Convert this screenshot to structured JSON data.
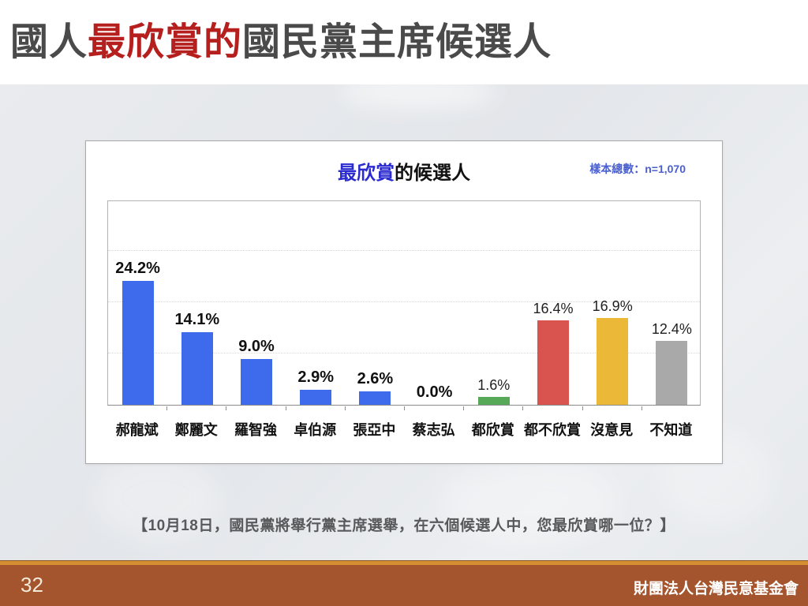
{
  "slide": {
    "title": {
      "prefix": "國人",
      "highlight": "最欣賞的",
      "suffix": "國民黨主席候選人"
    },
    "caption": "【10月18日，國民黨將舉行黨主席選舉，在六個候選人中，您最欣賞哪一位？】",
    "page_number": "32",
    "footer_org": "財團法人台灣民意基金會"
  },
  "chart": {
    "title_highlight": "最欣賞",
    "title_rest": "的候選人",
    "sample_note": "樣本總數：n=1,070"
  },
  "chart_data": {
    "type": "bar",
    "title": "最欣賞的候選人",
    "sample_note": "樣本總數：n=1,070",
    "categories": [
      "郝龍斌",
      "鄭麗文",
      "羅智強",
      "卓伯源",
      "張亞中",
      "蔡志弘",
      "都欣賞",
      "都不欣賞",
      "沒意見",
      "不知道"
    ],
    "values": [
      24.2,
      14.1,
      9.0,
      2.9,
      2.6,
      0.0,
      1.6,
      16.4,
      16.9,
      12.4
    ],
    "value_labels": [
      "24.2%",
      "14.1%",
      "9.0%",
      "2.9%",
      "2.6%",
      "0.0%",
      "1.6%",
      "16.4%",
      "16.9%",
      "12.4%"
    ],
    "value_label_bold": [
      true,
      true,
      true,
      true,
      true,
      true,
      false,
      false,
      false,
      false
    ],
    "bar_colors": [
      "#3d6bec",
      "#3d6bec",
      "#3d6bec",
      "#3d6bec",
      "#3d6bec",
      "#3d6bec",
      "#57a957",
      "#d9534f",
      "#ebb838",
      "#a9a9a9"
    ],
    "xlabel": "",
    "ylabel": "",
    "ylim": [
      0,
      40
    ],
    "gridlines": [
      10,
      20,
      30
    ],
    "grid_style": "dotted",
    "legend": "none"
  },
  "colors": {
    "title_gray": "#4a4a4a",
    "title_red": "#b5201e",
    "chart_title_blue": "#2b2bd0",
    "sample_note_blue": "#4a5fd0",
    "caption_gray": "#58595b",
    "footer_brown": "#a4552e",
    "footer_strip_orange": "#d68e33",
    "panel_bg": "#ffffff",
    "body_bg": "#e6e9ec"
  }
}
